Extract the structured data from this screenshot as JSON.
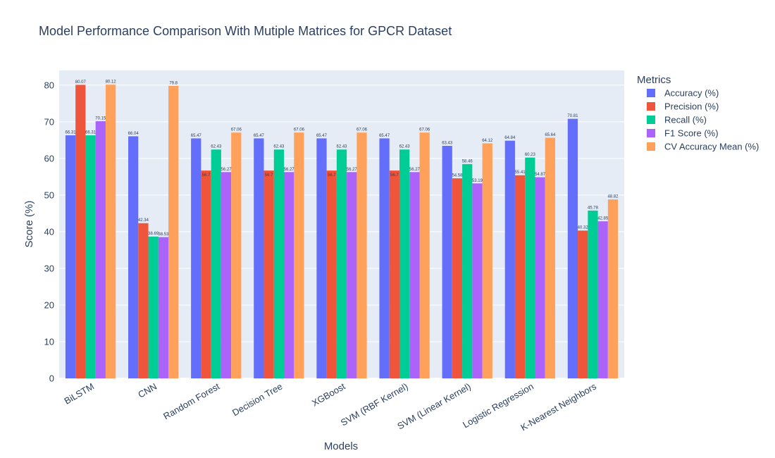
{
  "chart_data": {
    "type": "bar",
    "title": "Model Performance Comparison With Mutiple Matrices for GPCR Dataset",
    "xlabel": "Models",
    "ylabel": "Score (%)",
    "ylim": [
      0,
      84
    ],
    "yticks": [
      0,
      10,
      20,
      30,
      40,
      50,
      60,
      70,
      80
    ],
    "grid": true,
    "legend_title": "Metrics",
    "legend_position": "right",
    "categories": [
      "BiLSTM",
      "CNN",
      "Random Forest",
      "Decision Tree",
      "XGBoost",
      "SVM (RBF Kernel)",
      "SVM (Linear Kernel)",
      "Logistic Regression",
      "K-Nearest Neighbors"
    ],
    "series": [
      {
        "name": "Accuracy (%)",
        "color": "#636efa",
        "values": [
          66.31,
          66.04,
          65.47,
          65.47,
          65.47,
          65.47,
          63.43,
          64.84,
          70.81
        ]
      },
      {
        "name": "Precision (%)",
        "color": "#ef553b",
        "values": [
          80.07,
          42.34,
          56.7,
          56.7,
          56.7,
          56.7,
          54.58,
          55.41,
          40.32
        ]
      },
      {
        "name": "Recall (%)",
        "color": "#00cc96",
        "values": [
          66.31,
          38.69,
          62.43,
          62.43,
          62.43,
          62.43,
          58.46,
          60.23,
          45.78
        ]
      },
      {
        "name": "F1 Score (%)",
        "color": "#ab63fa",
        "values": [
          70.15,
          38.53,
          56.27,
          56.27,
          56.27,
          56.27,
          53.19,
          54.87,
          42.85
        ]
      },
      {
        "name": "CV Accuracy Mean (%)",
        "color": "#ffa15a",
        "values": [
          80.12,
          79.8,
          67.06,
          67.06,
          67.06,
          67.06,
          64.12,
          65.64,
          48.82
        ]
      }
    ]
  }
}
